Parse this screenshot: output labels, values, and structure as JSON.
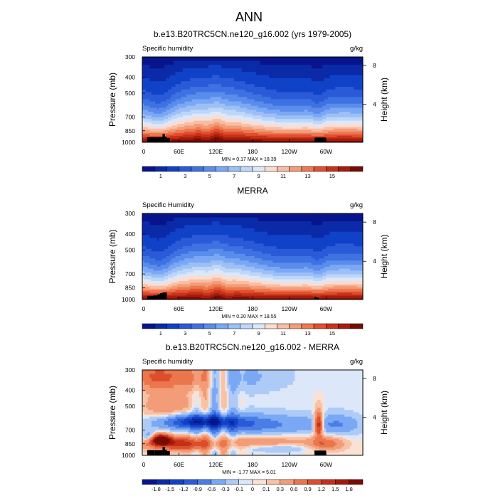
{
  "figure": {
    "title": "ANN"
  },
  "chart_data": [
    {
      "type": "heatmap",
      "id": "panel-model",
      "title": "b.e13.B20TRC5CN.ne120_g16.002 (yrs 1979-2005)",
      "left_label": "Specific humidity",
      "units": "g/kg",
      "ylabel": "Pressure (mb)",
      "ylabel_right": "Height (km)",
      "xlabel": "",
      "x_ticks": [
        "0",
        "60E",
        "120E",
        "180",
        "120W",
        "60W"
      ],
      "x_tick_values": [
        0,
        60,
        120,
        180,
        240,
        300
      ],
      "x_range": [
        0,
        360
      ],
      "y_ticks": [
        "300",
        "400",
        "500",
        "700",
        "850",
        "1000"
      ],
      "y_tick_values": [
        300,
        400,
        500,
        700,
        850,
        1000
      ],
      "y_range": [
        300,
        1000
      ],
      "y_right_ticks": [
        "8",
        "4"
      ],
      "y_right_tick_values": [
        8,
        4
      ],
      "stats": {
        "min": "0.17",
        "max": "18.39",
        "text": "MIN =   0.17  MAX =  18.39"
      },
      "colorbar_labels": [
        "1",
        "3",
        "5",
        "7",
        "9",
        "11",
        "13",
        "15"
      ],
      "colorbar_levels": [
        0.5,
        1,
        2,
        3,
        4,
        5,
        6,
        7,
        8,
        9,
        10,
        11,
        12,
        13,
        14,
        15,
        16
      ],
      "field": "humidity",
      "topography": [
        [
          8,
          20,
          930
        ],
        [
          20,
          33,
          930
        ],
        [
          33,
          37,
          890
        ],
        [
          37,
          40,
          925
        ],
        [
          40,
          45,
          940
        ],
        [
          281,
          300,
          935
        ]
      ]
    },
    {
      "type": "heatmap",
      "id": "panel-obs",
      "title": "MERRA",
      "left_label": "Specific Humidity",
      "units": "g/kg",
      "ylabel": "Pressure (mb)",
      "ylabel_right": "Height (km)",
      "xlabel": "",
      "x_ticks": [
        "0",
        "60E",
        "120E",
        "180",
        "120W",
        "60W"
      ],
      "x_tick_values": [
        0,
        60,
        120,
        180,
        240,
        300
      ],
      "x_range": [
        0,
        360
      ],
      "y_ticks": [
        "300",
        "400",
        "500",
        "700",
        "850",
        "1000"
      ],
      "y_tick_values": [
        300,
        400,
        500,
        700,
        850,
        1000
      ],
      "y_range": [
        300,
        1000
      ],
      "y_right_ticks": [
        "8",
        "4"
      ],
      "y_right_tick_values": [
        8,
        4
      ],
      "stats": {
        "min": "0.20",
        "max": "18.55",
        "text": "MIN =   0.20  MAX =  18.55"
      },
      "colorbar_labels": [
        "1",
        "3",
        "5",
        "7",
        "9",
        "11",
        "13",
        "15"
      ],
      "colorbar_levels": [
        0.5,
        1,
        2,
        3,
        4,
        5,
        6,
        7,
        8,
        9,
        10,
        11,
        12,
        13,
        14,
        15,
        16
      ],
      "field": "humidity_obs",
      "topography": [
        [
          8,
          18,
          950
        ],
        [
          18,
          25,
          945
        ],
        [
          25,
          29,
          930
        ],
        [
          29,
          33,
          915
        ],
        [
          33,
          40,
          905
        ],
        [
          281,
          284,
          960
        ],
        [
          284,
          288,
          975
        ]
      ]
    },
    {
      "type": "heatmap",
      "id": "panel-diff",
      "title": "b.e13.B20TRC5CN.ne120_g16.002 - MERRA",
      "left_label": "Specific humidity",
      "units": "g/kg",
      "ylabel": "Pressure (mb)",
      "ylabel_right": "Height (km)",
      "xlabel": "",
      "x_ticks": [
        "0",
        "60E",
        "120E",
        "180",
        "120W",
        "60W"
      ],
      "x_tick_values": [
        0,
        60,
        120,
        180,
        240,
        300
      ],
      "x_range": [
        0,
        360
      ],
      "y_ticks": [
        "300",
        "400",
        "500",
        "700",
        "850",
        "1000"
      ],
      "y_tick_values": [
        300,
        400,
        500,
        700,
        850,
        1000
      ],
      "y_range": [
        300,
        1000
      ],
      "y_right_ticks": [
        "8",
        "4"
      ],
      "y_right_tick_values": [
        8,
        4
      ],
      "stats": {
        "min": "-1.77",
        "max": "5.01",
        "text": "MIN =  -1.77  MAX =   5.01"
      },
      "colorbar_labels": [
        "-1.8",
        "-1.5",
        "-1.2",
        "-0.9",
        "-0.6",
        "-0.3",
        "-0.1",
        "0",
        "0.1",
        "0.3",
        "0.6",
        "0.9",
        "1.2",
        "1.5",
        "1.8"
      ],
      "colorbar_levels": [
        -1.8,
        -1.5,
        -1.2,
        -0.9,
        -0.6,
        -0.3,
        -0.1,
        0,
        0.1,
        0.3,
        0.6,
        0.9,
        1.2,
        1.5,
        1.8
      ],
      "field": "difference",
      "topography": [
        [
          8,
          20,
          930
        ],
        [
          20,
          33,
          930
        ],
        [
          33,
          37,
          890
        ],
        [
          37,
          40,
          925
        ],
        [
          40,
          45,
          940
        ],
        [
          281,
          300,
          935
        ]
      ]
    }
  ],
  "colors": {
    "humidity_palette": [
      "#08148c",
      "#0a2aa8",
      "#1042c8",
      "#2a5ad8",
      "#3e72e2",
      "#5a8cec",
      "#7aa8f4",
      "#9cc0f6",
      "#bed6f8",
      "#dce8fa",
      "#fadcd0",
      "#f7bea4",
      "#f49c78",
      "#ee7850",
      "#e0502e",
      "#c8321a",
      "#a81c0c",
      "#7a0a04"
    ],
    "difference_palette": [
      "#08148c",
      "#0a2aa8",
      "#1042c8",
      "#2a5ad8",
      "#4a7ee6",
      "#7aa8f4",
      "#aecbf7",
      "#dce8fa",
      "#f9e2d4",
      "#f7c2a6",
      "#f39c78",
      "#ec764c",
      "#dc4e2c",
      "#c2301a",
      "#a01a0a",
      "#7a0a04"
    ],
    "topography": "#000000",
    "frame": "#000000"
  }
}
